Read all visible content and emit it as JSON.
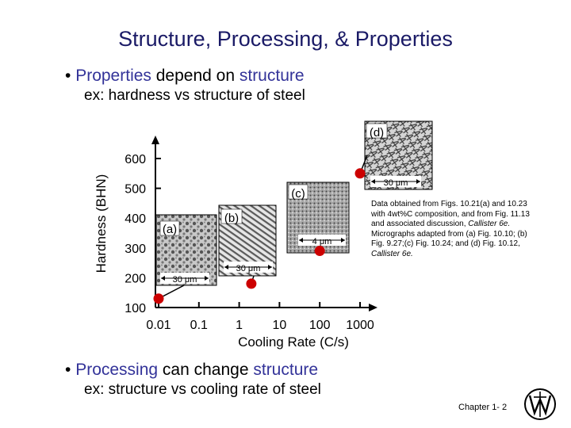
{
  "slide": {
    "title": "Structure, Processing, & Properties",
    "bullet1": {
      "w1": "Properties",
      "w2": " depend on ",
      "w3": "structure"
    },
    "sub1": "ex:  hardness vs structure of steel",
    "bullet2": {
      "w1": "Processing",
      "w2": " can change ",
      "w3": "structure"
    },
    "sub2": "ex:  structure vs cooling rate of steel",
    "bullet_char": "•",
    "footer": "Chapter 1-  2"
  },
  "note": {
    "p1": "Data obtained from Figs. 10.21(a) and 10.23 with 4wt%C composition, and from Fig. 11.13 and associated discussion, ",
    "p1_it": "Callister 6e.",
    "p2": "Micrographs adapted from (a) Fig. 10.10; (b) Fig. 9.27;(c) Fig. 10.24; and (d) Fig. 10.12, ",
    "p2_it": "Callister 6e."
  },
  "micrographs": [
    {
      "label": "(a)",
      "scale": "30 μm"
    },
    {
      "label": "(b)",
      "scale": "30 μm"
    },
    {
      "label": "(c)",
      "scale": "4 μm"
    },
    {
      "label": "(d)",
      "scale": "30 μm"
    }
  ],
  "colors": {
    "title": "#1a1a66",
    "accent_text": "#333399",
    "points": "#cc0000"
  },
  "chart_data": {
    "type": "scatter",
    "xlabel": "Cooling Rate (C/s)",
    "ylabel": "Hardness (BHN)",
    "x_scale": "log",
    "xlim": [
      0.01,
      1000
    ],
    "ylim": [
      100,
      600
    ],
    "x_ticks": [
      "0.01",
      "0.1",
      "1",
      "10",
      "100",
      "1000"
    ],
    "y_ticks": [
      "100",
      "200",
      "300",
      "400",
      "500",
      "600"
    ],
    "points": [
      {
        "x": 0.01,
        "y": 130,
        "label": "(a)"
      },
      {
        "x": 2,
        "y": 180,
        "label": "(b)"
      },
      {
        "x": 100,
        "y": 290,
        "label": "(c)"
      },
      {
        "x": 1000,
        "y": 550,
        "label": "(d)"
      }
    ]
  }
}
